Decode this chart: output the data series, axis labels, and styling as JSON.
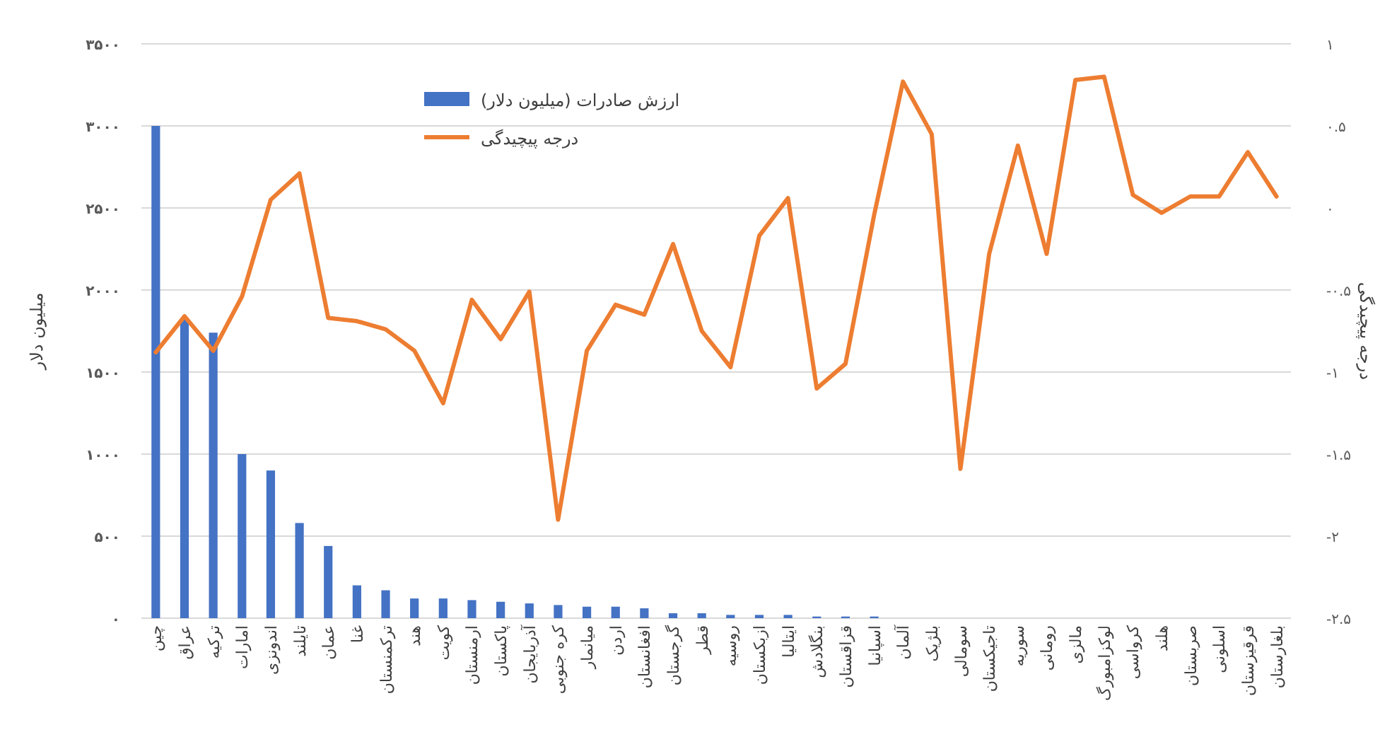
{
  "chart_data": {
    "type": "bar",
    "categories": [
      "چین",
      "عراق",
      "ترکیه",
      "امارات",
      "اندونزی",
      "تایلند",
      "عمان",
      "غنا",
      "ترکمنستان",
      "هند",
      "کویت",
      "ارمنستان",
      "پاکستان",
      "آذربایجان",
      "کره جنوبی",
      "میانمار",
      "اردن",
      "افغانستان",
      "گرجستان",
      "قطر",
      "روسیه",
      "ازبکستان",
      "ایتالیا",
      "بنگلادش",
      "قزاقستان",
      "اسپانیا",
      "آلمان",
      "بلژیک",
      "سومالی",
      "تاجیکستان",
      "سوریه",
      "رومانی",
      "مالزی",
      "لوکزامبورگ",
      "کرواسی",
      "هلند",
      "صربستان",
      "اسلونی",
      "قرقیزستان",
      "بلغارستان"
    ],
    "series": [
      {
        "name": "ارزش صادرات (میلیون دلار)",
        "color": "#4472c4",
        "values": [
          3000,
          1820,
          1740,
          1000,
          900,
          580,
          440,
          200,
          170,
          120,
          120,
          110,
          100,
          90,
          80,
          70,
          70,
          60,
          30,
          30,
          20,
          20,
          20,
          10,
          10,
          10,
          0,
          0,
          0,
          0,
          0,
          0,
          0,
          0,
          0,
          0,
          0,
          0,
          0,
          0
        ]
      },
      {
        "name": "درجه پیچیدگی",
        "type": "line",
        "axis": "y2",
        "color": "#ed7d31",
        "values": [
          -0.88,
          -0.66,
          -0.87,
          -0.54,
          0.05,
          0.21,
          -0.67,
          -0.69,
          -0.74,
          -0.87,
          -1.19,
          -0.56,
          -0.8,
          -0.51,
          -1.9,
          -0.87,
          -0.59,
          -0.65,
          -0.22,
          -0.75,
          -0.97,
          -0.17,
          0.06,
          -1.1,
          -0.95,
          -0.04,
          0.77,
          0.45,
          -1.59,
          -0.28,
          0.38,
          -0.28,
          0.78,
          0.8,
          0.08,
          -0.03,
          0.07,
          0.07,
          0.34,
          0.07
        ]
      }
    ],
    "ylabel": "میلیون دلار",
    "y2label": "درجه پیچیدگی",
    "ylim": [
      0,
      3500
    ],
    "yticks": [
      {
        "value": 0,
        "label": "۰"
      },
      {
        "value": 500,
        "label": "۵۰۰"
      },
      {
        "value": 1000,
        "label": "۱۰۰۰"
      },
      {
        "value": 1500,
        "label": "۱۵۰۰"
      },
      {
        "value": 2000,
        "label": "۲۰۰۰"
      },
      {
        "value": 2500,
        "label": "۲۵۰۰"
      },
      {
        "value": 3000,
        "label": "۳۰۰۰"
      },
      {
        "value": 3500,
        "label": "۳۵۰۰"
      }
    ],
    "y2lim": [
      -2.5,
      1
    ],
    "y2ticks": [
      {
        "value": -2.5,
        "label": "-۲.۵"
      },
      {
        "value": -2,
        "label": "-۲"
      },
      {
        "value": -1.5,
        "label": "-۱.۵"
      },
      {
        "value": -1,
        "label": "-۱"
      },
      {
        "value": -0.5,
        "label": "-۰.۵"
      },
      {
        "value": 0,
        "label": "۰"
      },
      {
        "value": 0.5,
        "label": "۰.۵"
      },
      {
        "value": 1,
        "label": "۱"
      }
    ],
    "grid": "y",
    "legend": "top left",
    "marker": "none",
    "line_style": "solid"
  }
}
